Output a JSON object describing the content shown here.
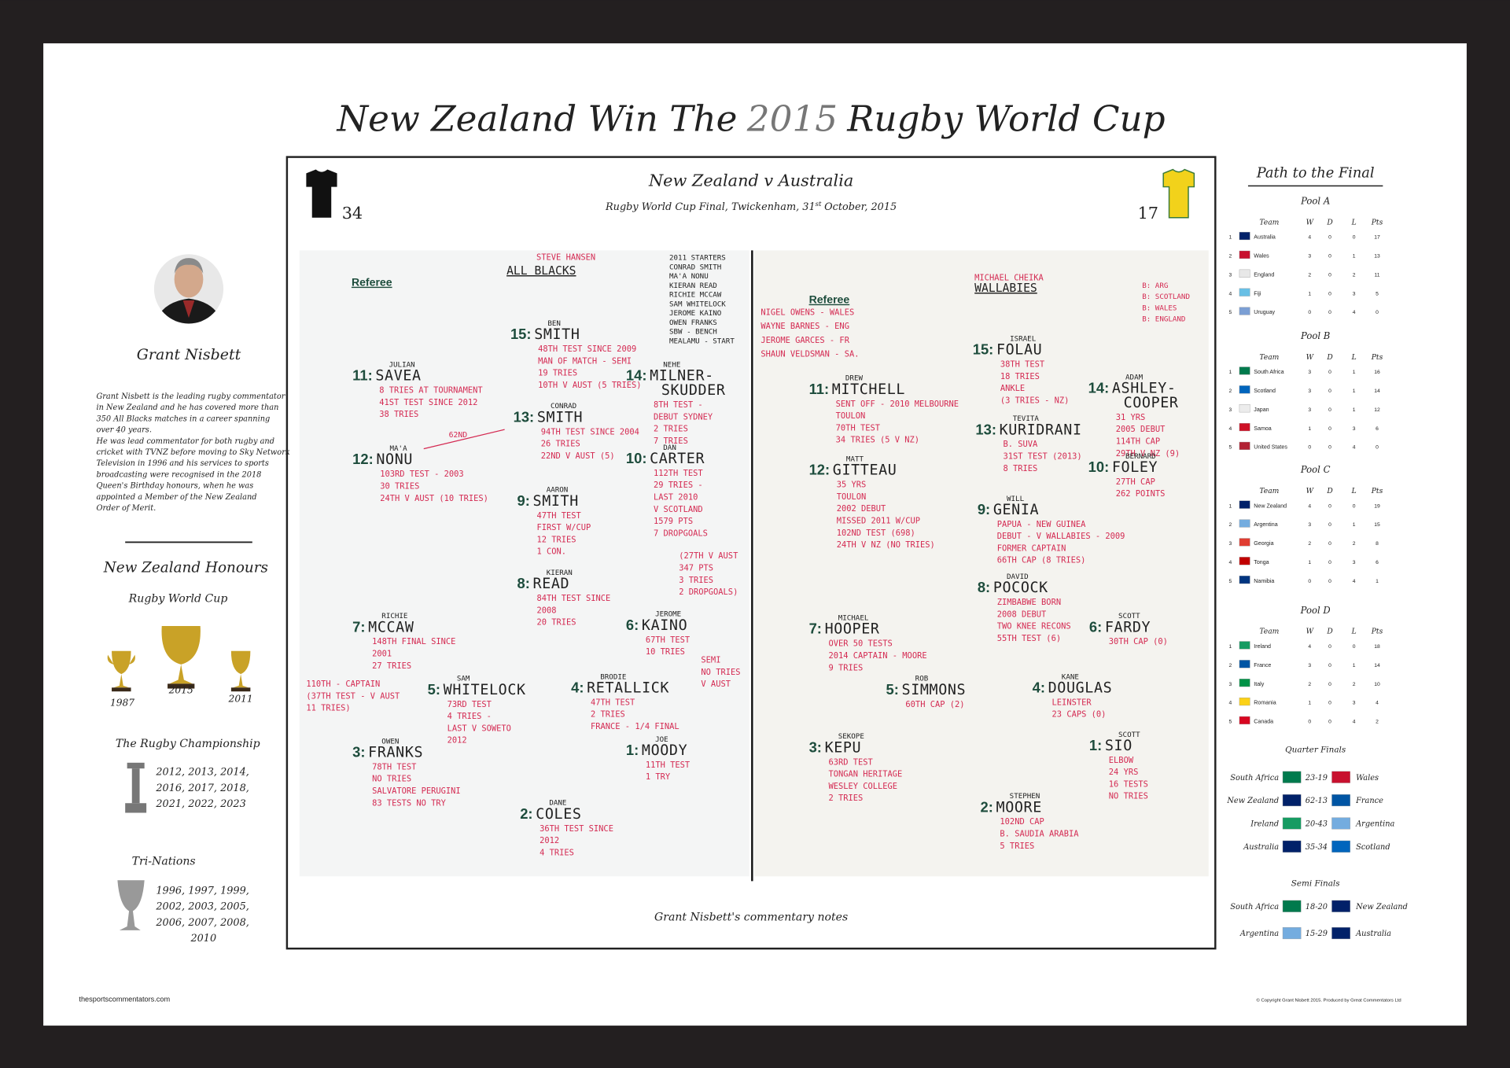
{
  "header": {
    "title_start": "New Zealand Win The",
    "title_year": "2015",
    "title_end": "Rugby World Cup"
  },
  "commentator": {
    "name": "Grant Nisbett",
    "bio": [
      "Grant Nisbett is the leading rugby commentator",
      "in New Zealand and he has covered more than",
      "350 All Blacks matches in a career spanning",
      "over 40 years.",
      "He was lead commentator for both rugby and",
      "cricket with TVNZ before moving to Sky Network",
      "Television in 1996 and his services to sports",
      "broadcasting were recognised in the 2018",
      "Queen's Birthday honours, when he was",
      "appointed a Member of the New Zealand",
      "Order of Merit."
    ],
    "honours_title": "New Zealand Honours",
    "rwc": {
      "title": "Rugby World Cup",
      "years": [
        1987,
        2015,
        2011
      ]
    },
    "championship": {
      "title": "The Rugby Championship",
      "lines": [
        "2012, 2013, 2014,",
        "2016, 2017, 2018,",
        "2021, 2022, 2023"
      ]
    },
    "tri_nations": {
      "title": "Tri-Nations",
      "lines": [
        "1996, 1997, 1999,",
        "2002, 2003, 2005,",
        "2006, 2007, 2008,",
        "2010"
      ]
    }
  },
  "match": {
    "title": "New Zealand v Australia",
    "subtitle": "Rugby World Cup Final, Twickenham, 31",
    "subtitle_sup": "st",
    "subtitle_end": "October, 2015",
    "home_score": 34,
    "away_score": 17,
    "caption": "Grant Nisbett's commentary notes"
  },
  "notes": {
    "left": {
      "referee_label": "Referee",
      "coach": "STEVE HANSEN",
      "team": "ALL BLACKS",
      "annotation": "62ND",
      "starters": [
        "2011 STARTERS",
        "CONRAD SMITH",
        "MA'A NONU",
        "KIERAN READ",
        "RICHIE MCCAW",
        "SAM WHITELOCK",
        "JEROME KAINO",
        "OWEN FRANKS",
        "SBW - BENCH",
        "MEALAMU - START"
      ],
      "players": [
        {
          "number": "15:",
          "first": "BEN",
          "name": [
            "SMITH"
          ],
          "notes": [
            "48TH TEST SINCE 2009",
            "MAN OF MATCH - SEMI",
            "19 TRIES",
            "10TH V AUST (5 TRIES)"
          ]
        },
        {
          "number": "11:",
          "first": "JULIAN",
          "name": [
            "SAVEA"
          ],
          "notes": [
            "8 TRIES AT TOURNAMENT",
            "41ST TEST SINCE 2012",
            "38 TRIES"
          ]
        },
        {
          "number": "14:",
          "first": "NEHE",
          "name": [
            "MILNER-",
            "SKUDDER"
          ],
          "notes": [
            "8TH TEST -",
            "DEBUT SYDNEY",
            "2 TRIES",
            "7 TRIES"
          ]
        },
        {
          "number": "13:",
          "first": "CONRAD",
          "name": [
            "SMITH"
          ],
          "notes": [
            "94TH TEST SINCE 2004",
            "26 TRIES",
            "22ND V AUST (5)"
          ]
        },
        {
          "number": "12:",
          "first": "MA'A",
          "name": [
            "NONU"
          ],
          "notes": [
            "103RD TEST - 2003",
            "30 TRIES",
            "24TH V AUST (10 TRIES)"
          ]
        },
        {
          "number": "10:",
          "first": "DAN",
          "name": [
            "CARTER"
          ],
          "notes": [
            "112TH TEST",
            "29 TRIES -",
            "LAST 2010",
            "V SCOTLAND",
            "1579 PTS",
            "7 DROPGOALS"
          ],
          "extra": [
            "(27TH V AUST",
            "347 PTS",
            "3 TRIES",
            "2 DROPGOALS)"
          ]
        },
        {
          "number": "9:",
          "first": "AARON",
          "name": [
            "SMITH"
          ],
          "notes": [
            "47TH TEST",
            "FIRST W/CUP",
            "12 TRIES",
            "1 CON."
          ]
        },
        {
          "number": "8:",
          "first": "KIERAN",
          "name": [
            "READ"
          ],
          "notes": [
            "84TH TEST SINCE",
            "2008",
            "20 TRIES"
          ]
        },
        {
          "number": "7:",
          "first": "RICHIE",
          "name": [
            "MCCAW"
          ],
          "notes": [
            "148TH FINAL SINCE",
            "2001",
            "27 TRIES"
          ],
          "extra": [
            "110TH - CAPTAIN",
            "(37TH TEST - V AUST",
            "11 TRIES)"
          ]
        },
        {
          "number": "6:",
          "first": "JEROME",
          "name": [
            "KAINO"
          ],
          "notes": [
            "67TH TEST",
            "10 TRIES"
          ],
          "extra": [
            "SEMI",
            "NO TRIES",
            "V AUST"
          ]
        },
        {
          "number": "5:",
          "first": "SAM",
          "name": [
            "WHITELOCK"
          ],
          "notes": [
            "73RD TEST",
            "4 TRIES -",
            "LAST V SOWETO",
            "2012"
          ]
        },
        {
          "number": "4:",
          "first": "BRODIE",
          "name": [
            "RETALLICK"
          ],
          "notes": [
            "47TH TEST",
            "2 TRIES",
            "FRANCE - 1/4 FINAL"
          ]
        },
        {
          "number": "3:",
          "first": "OWEN",
          "name": [
            "FRANKS"
          ],
          "notes": [
            "78TH TEST",
            "NO TRIES",
            "SALVATORE PERUGINI",
            "83 TESTS NO TRY"
          ]
        },
        {
          "number": "1:",
          "first": "JOE",
          "name": [
            "MOODY"
          ],
          "notes": [
            "11TH TEST",
            "1 TRY"
          ]
        },
        {
          "number": "2:",
          "first": "DANE",
          "name": [
            "COLES"
          ],
          "notes": [
            "36TH TEST SINCE",
            "2012",
            "4 TRIES"
          ]
        }
      ]
    },
    "right": {
      "referee_label": "Referee",
      "coach": "MICHAEL CHEIKA",
      "team": "WALLABIES",
      "referees": [
        "NIGEL OWENS - WALES",
        "WAYNE BARNES - ENG",
        "JEROME GARCES - FR",
        "SHAUN VELDSMAN - SA."
      ],
      "results": [
        "B: ARG",
        "B: SCOTLAND",
        "B: WALES",
        "B: ENGLAND"
      ],
      "players": [
        {
          "number": "15:",
          "first": "ISRAEL",
          "name": [
            "FOLAU"
          ],
          "notes": [
            "38TH TEST",
            "18 TRIES",
            "ANKLE",
            "(3 TRIES - NZ)"
          ]
        },
        {
          "number": "11:",
          "first": "DREW",
          "name": [
            "MITCHELL"
          ],
          "notes": [
            "SENT OFF - 2010 MELBOURNE",
            "TOULON",
            "70TH TEST",
            "34 TRIES (5 V NZ)"
          ]
        },
        {
          "number": "14:",
          "first": "ADAM",
          "name": [
            "ASHLEY-",
            "COOPER"
          ],
          "notes": [
            "31 YRS",
            "2005 DEBUT",
            "114TH CAP",
            "29TH V NZ (9)"
          ]
        },
        {
          "number": "13:",
          "first": "TEVITA",
          "name": [
            "KURIDRANI"
          ],
          "notes": [
            "B. SUVA",
            "31ST TEST (2013)",
            "8 TRIES"
          ]
        },
        {
          "number": "12:",
          "first": "MATT",
          "name": [
            "GITTEAU"
          ],
          "notes": [
            "35 YRS",
            "TOULON",
            "2002 DEBUT",
            "MISSED 2011 W/CUP",
            "102ND TEST (698)",
            "24TH V NZ (NO TRIES)"
          ]
        },
        {
          "number": "10:",
          "first": "BERNARD",
          "name": [
            "FOLEY"
          ],
          "notes": [
            "27TH CAP",
            "262 POINTS"
          ]
        },
        {
          "number": "9:",
          "first": "WILL",
          "name": [
            "GENIA"
          ],
          "notes": [
            "PAPUA - NEW GUINEA",
            "DEBUT - V WALLABIES - 2009",
            "FORMER CAPTAIN",
            "66TH CAP (8 TRIES)"
          ]
        },
        {
          "number": "8:",
          "first": "DAVID",
          "name": [
            "POCOCK"
          ],
          "notes": [
            "ZIMBABWE BORN",
            "2008 DEBUT",
            "TWO KNEE RECONS",
            "55TH TEST (6)"
          ]
        },
        {
          "number": "7:",
          "first": "MICHAEL",
          "name": [
            "HOOPER"
          ],
          "notes": [
            "OVER 50 TESTS",
            "2014 CAPTAIN - MOORE",
            "9 TRIES"
          ]
        },
        {
          "number": "6:",
          "first": "SCOTT",
          "name": [
            "FARDY"
          ],
          "notes": [
            "30TH CAP (0)"
          ]
        },
        {
          "number": "5:",
          "first": "ROB",
          "name": [
            "SIMMONS"
          ],
          "notes": [
            "60TH CAP (2)"
          ]
        },
        {
          "number": "4:",
          "first": "KANE",
          "name": [
            "DOUGLAS"
          ],
          "notes": [
            "LEINSTER",
            "23 CAPS (0)"
          ]
        },
        {
          "number": "3:",
          "first": "SEKOPE",
          "name": [
            "KEPU"
          ],
          "notes": [
            "63RD TEST",
            "TONGAN HERITAGE",
            "WESLEY COLLEGE",
            "2 TRIES"
          ]
        },
        {
          "number": "1:",
          "first": "SCOTT",
          "name": [
            "SIO"
          ],
          "notes": [
            "ELBOW",
            "24 YRS",
            "16 TESTS",
            "NO TRIES"
          ]
        },
        {
          "number": "2:",
          "first": "STEPHEN",
          "name": [
            "MOORE"
          ],
          "notes": [
            "102ND CAP",
            "B. SAUDIA ARABIA",
            "5 TRIES"
          ]
        }
      ]
    }
  },
  "path": {
    "title": "Path to the Final",
    "pools": [
      {
        "name": "Pool A",
        "columns": [
          "Team",
          "W",
          "D",
          "L",
          "Pts"
        ],
        "rows": [
          {
            "rank": 1,
            "team": "Australia",
            "flag": "#012169",
            "w": 4,
            "d": 0,
            "l": 0,
            "pts": 17
          },
          {
            "rank": 2,
            "team": "Wales",
            "flag": "#c8102e",
            "w": 3,
            "d": 0,
            "l": 1,
            "pts": 13
          },
          {
            "rank": 3,
            "team": "England",
            "flag": "#e8e8e8",
            "w": 2,
            "d": 0,
            "l": 2,
            "pts": 11
          },
          {
            "rank": 4,
            "team": "Fiji",
            "flag": "#68bfe5",
            "w": 1,
            "d": 0,
            "l": 3,
            "pts": 5
          },
          {
            "rank": 5,
            "team": "Uruguay",
            "flag": "#7b9fd4",
            "w": 0,
            "d": 0,
            "l": 4,
            "pts": 0
          }
        ]
      },
      {
        "name": "Pool B",
        "columns": [
          "Team",
          "W",
          "D",
          "L",
          "Pts"
        ],
        "rows": [
          {
            "rank": 1,
            "team": "South Africa",
            "flag": "#007a4d",
            "w": 3,
            "d": 0,
            "l": 1,
            "pts": 16
          },
          {
            "rank": 2,
            "team": "Scotland",
            "flag": "#0065bd",
            "w": 3,
            "d": 0,
            "l": 1,
            "pts": 14
          },
          {
            "rank": 3,
            "team": "Japan",
            "flag": "#ececec",
            "w": 3,
            "d": 0,
            "l": 1,
            "pts": 12
          },
          {
            "rank": 4,
            "team": "Samoa",
            "flag": "#ce1126",
            "w": 1,
            "d": 0,
            "l": 3,
            "pts": 6
          },
          {
            "rank": 5,
            "team": "United States",
            "flag": "#b22234",
            "w": 0,
            "d": 0,
            "l": 4,
            "pts": 0
          }
        ]
      },
      {
        "name": "Pool C",
        "columns": [
          "Team",
          "W",
          "D",
          "L",
          "Pts"
        ],
        "rows": [
          {
            "rank": 1,
            "team": "New Zealand",
            "flag": "#012169",
            "w": 4,
            "d": 0,
            "l": 0,
            "pts": 19
          },
          {
            "rank": 2,
            "team": "Argentina",
            "flag": "#74acdf",
            "w": 3,
            "d": 0,
            "l": 1,
            "pts": 15
          },
          {
            "rank": 3,
            "team": "Georgia",
            "flag": "#e03c31",
            "w": 2,
            "d": 0,
            "l": 2,
            "pts": 8
          },
          {
            "rank": 4,
            "team": "Tonga",
            "flag": "#c10000",
            "w": 1,
            "d": 0,
            "l": 3,
            "pts": 6
          },
          {
            "rank": 5,
            "team": "Namibia",
            "flag": "#003580",
            "w": 0,
            "d": 0,
            "l": 4,
            "pts": 1
          }
        ]
      },
      {
        "name": "Pool D",
        "columns": [
          "Team",
          "W",
          "D",
          "L",
          "Pts"
        ],
        "rows": [
          {
            "rank": 1,
            "team": "Ireland",
            "flag": "#169b62",
            "w": 4,
            "d": 0,
            "l": 0,
            "pts": 18
          },
          {
            "rank": 2,
            "team": "France",
            "flag": "#0055a4",
            "w": 3,
            "d": 0,
            "l": 1,
            "pts": 14
          },
          {
            "rank": 3,
            "team": "Italy",
            "flag": "#009246",
            "w": 2,
            "d": 0,
            "l": 2,
            "pts": 10
          },
          {
            "rank": 4,
            "team": "Romania",
            "flag": "#fcd116",
            "w": 1,
            "d": 0,
            "l": 3,
            "pts": 4
          },
          {
            "rank": 5,
            "team": "Canada",
            "flag": "#d80621",
            "w": 0,
            "d": 0,
            "l": 4,
            "pts": 2
          }
        ]
      }
    ],
    "quarter_finals": {
      "title": "Quarter Finals",
      "matches": [
        {
          "home": "South Africa",
          "home_flag": "#007a4d",
          "score": "23-19",
          "away": "Wales",
          "away_flag": "#c8102e"
        },
        {
          "home": "New Zealand",
          "home_flag": "#012169",
          "score": "62-13",
          "away": "France",
          "away_flag": "#0055a4"
        },
        {
          "home": "Ireland",
          "home_flag": "#169b62",
          "score": "20-43",
          "away": "Argentina",
          "away_flag": "#74acdf"
        },
        {
          "home": "Australia",
          "home_flag": "#012169",
          "score": "35-34",
          "away": "Scotland",
          "away_flag": "#0065bd"
        }
      ]
    },
    "semi_finals": {
      "title": "Semi Finals",
      "matches": [
        {
          "home": "South Africa",
          "home_flag": "#007a4d",
          "score": "18-20",
          "away": "New Zealand",
          "away_flag": "#012169"
        },
        {
          "home": "Argentina",
          "home_flag": "#74acdf",
          "score": "15-29",
          "away": "Australia",
          "away_flag": "#012169"
        }
      ]
    }
  },
  "footer": {
    "website": "thesportscommentators.com",
    "copyright": "© Copyright Grant Nisbett 2015. Produced by Great Commentators Ltd"
  }
}
